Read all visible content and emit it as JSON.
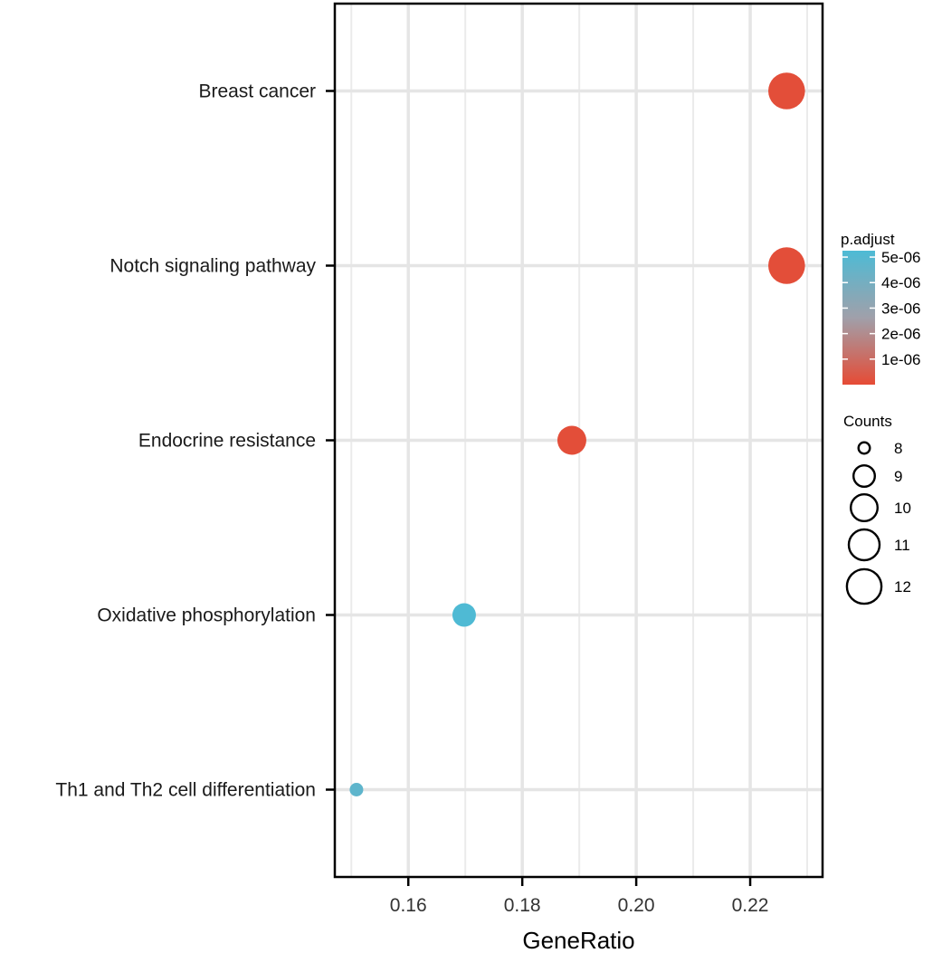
{
  "chart_data": {
    "type": "scatter",
    "subtype": "dotplot",
    "title": "",
    "xlabel": "GeneRatio",
    "ylabel": "",
    "xlim": [
      0.1471,
      0.2327
    ],
    "x_major_ticks": [
      0.16,
      0.18,
      0.2,
      0.22
    ],
    "x_tick_labels": [
      "0.16",
      "0.18",
      "0.20",
      "0.22"
    ],
    "x_minor_ticks": [
      0.15,
      0.17,
      0.19,
      0.21,
      0.23
    ],
    "grid": true,
    "categories": [
      "Breast cancer",
      "Notch signaling pathway",
      "Endocrine resistance",
      "Oxidative phosphorylation",
      "Th1 and Th2 cell differentiation"
    ],
    "points": [
      {
        "term": "Breast cancer",
        "gene_ratio": 0.2264,
        "count": 12,
        "p_adjust": 1e-07
      },
      {
        "term": "Notch signaling pathway",
        "gene_ratio": 0.2264,
        "count": 12,
        "p_adjust": 1e-07
      },
      {
        "term": "Endocrine resistance",
        "gene_ratio": 0.1887,
        "count": 10,
        "p_adjust": 1e-07
      },
      {
        "term": "Oxidative phosphorylation",
        "gene_ratio": 0.1698,
        "count": 9,
        "p_adjust": 5.2e-06
      },
      {
        "term": "Th1 and Th2 cell differentiation",
        "gene_ratio": 0.1509,
        "count": 8,
        "p_adjust": 4.7e-06
      }
    ],
    "color_legend": {
      "title": "p.adjust",
      "range": [
        0.0,
        5.25e-06
      ],
      "ticks": [
        5e-06,
        4e-06,
        3e-06,
        2e-06,
        1e-06
      ],
      "tick_labels": [
        "5e-06",
        "4e-06",
        "3e-06",
        "2e-06",
        "1e-06"
      ],
      "low_color": "#E64B35",
      "high_color": "#4DBBD5",
      "placement": "right"
    },
    "size_legend": {
      "title": "Counts",
      "values": [
        8,
        9,
        10,
        11,
        12
      ],
      "labels": [
        "8",
        "9",
        "10",
        "11",
        "12"
      ],
      "placement": "right"
    }
  }
}
